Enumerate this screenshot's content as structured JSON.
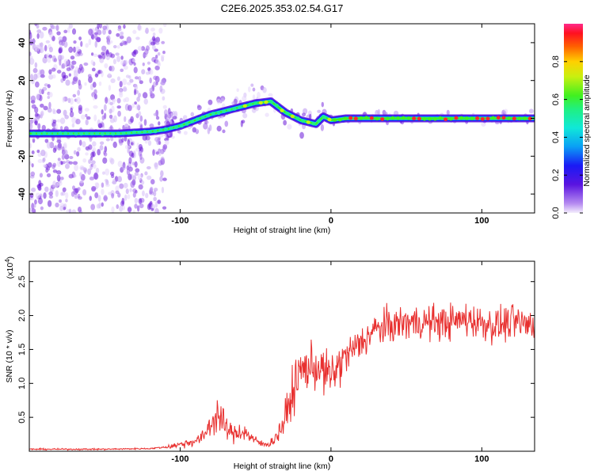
{
  "title": "C2E6.2025.353.02.54.G17",
  "top_panel": {
    "xlabel": "Height of straight line (km)",
    "ylabel": "Frequency (Hz)",
    "xlim": [
      -200,
      135
    ],
    "ylim": [
      -50,
      50
    ],
    "xticks": [
      -100,
      0,
      100
    ],
    "yticks": [
      -40,
      -20,
      0,
      20,
      40
    ],
    "colorbar": {
      "label": "Normalized spectral amplitude",
      "ticks": [
        0.0,
        0.2,
        0.4,
        0.6,
        0.8
      ],
      "range": [
        0,
        1
      ]
    }
  },
  "chart_data": [
    {
      "type": "scatter",
      "title": "C2E6.2025.353.02.54.G17",
      "xlabel": "Height of straight line (km)",
      "ylabel": "Frequency (Hz)",
      "xlim": [
        -200,
        135
      ],
      "ylim": [
        -50,
        50
      ],
      "series": [
        {
          "name": "Doppler frequency ridge",
          "x": [
            -200,
            -180,
            -160,
            -140,
            -120,
            -110,
            -100,
            -90,
            -80,
            -70,
            -60,
            -50,
            -40,
            -35,
            -30,
            -25,
            -20,
            -15,
            -10,
            -5,
            0,
            10,
            20,
            40,
            60,
            80,
            100,
            120,
            135
          ],
          "y": [
            -8,
            -8,
            -8,
            -8,
            -7,
            -6,
            -4,
            -1,
            2,
            4,
            6,
            8,
            9,
            6,
            3,
            1,
            -1,
            -2,
            -3,
            1,
            -1,
            0,
            0,
            0,
            0,
            0,
            0,
            0,
            0
          ]
        }
      ]
    },
    {
      "type": "line",
      "xlabel": "Height of straight line (km)",
      "ylabel": "SNR (10 * v/v)",
      "ylabel_multiplier": "(x10^4)",
      "xlim": [
        -200,
        135
      ],
      "ylim": [
        0,
        2.8
      ],
      "xticks": [
        -100,
        0,
        100
      ],
      "yticks": [
        0.5,
        1.0,
        1.5,
        2.0,
        2.5
      ],
      "series": [
        {
          "name": "SNR",
          "color": "#e8302f",
          "x": [
            -200,
            -150,
            -120,
            -110,
            -100,
            -90,
            -85,
            -80,
            -75,
            -70,
            -65,
            -60,
            -55,
            -50,
            -45,
            -40,
            -35,
            -30,
            -25,
            -20,
            -10,
            0,
            10,
            20,
            30,
            40,
            50,
            60,
            70,
            80,
            90,
            100,
            110,
            120,
            135
          ],
          "y": [
            0.03,
            0.03,
            0.04,
            0.06,
            0.1,
            0.15,
            0.2,
            0.4,
            0.55,
            0.35,
            0.25,
            0.3,
            0.25,
            0.15,
            0.1,
            0.12,
            0.25,
            0.5,
            0.9,
            1.2,
            1.25,
            1.1,
            1.4,
            1.6,
            1.8,
            1.85,
            1.9,
            1.9,
            1.9,
            1.9,
            1.95,
            1.9,
            1.85,
            1.9,
            1.85
          ]
        }
      ]
    }
  ],
  "bottom_panel": {
    "xlabel": "Height of straight line (km)",
    "ylabel": "SNR (10 * v/v)",
    "multiplier_base": "(x10",
    "multiplier_exp": "4",
    "multiplier_close": ")",
    "xticks": [
      -100,
      0,
      100
    ],
    "yticks": [
      "0.5",
      "1.0",
      "1.5",
      "2.0",
      "2.5"
    ]
  },
  "colors": {
    "snr_line": "#e8302f",
    "noise": "#7b2fe0"
  }
}
